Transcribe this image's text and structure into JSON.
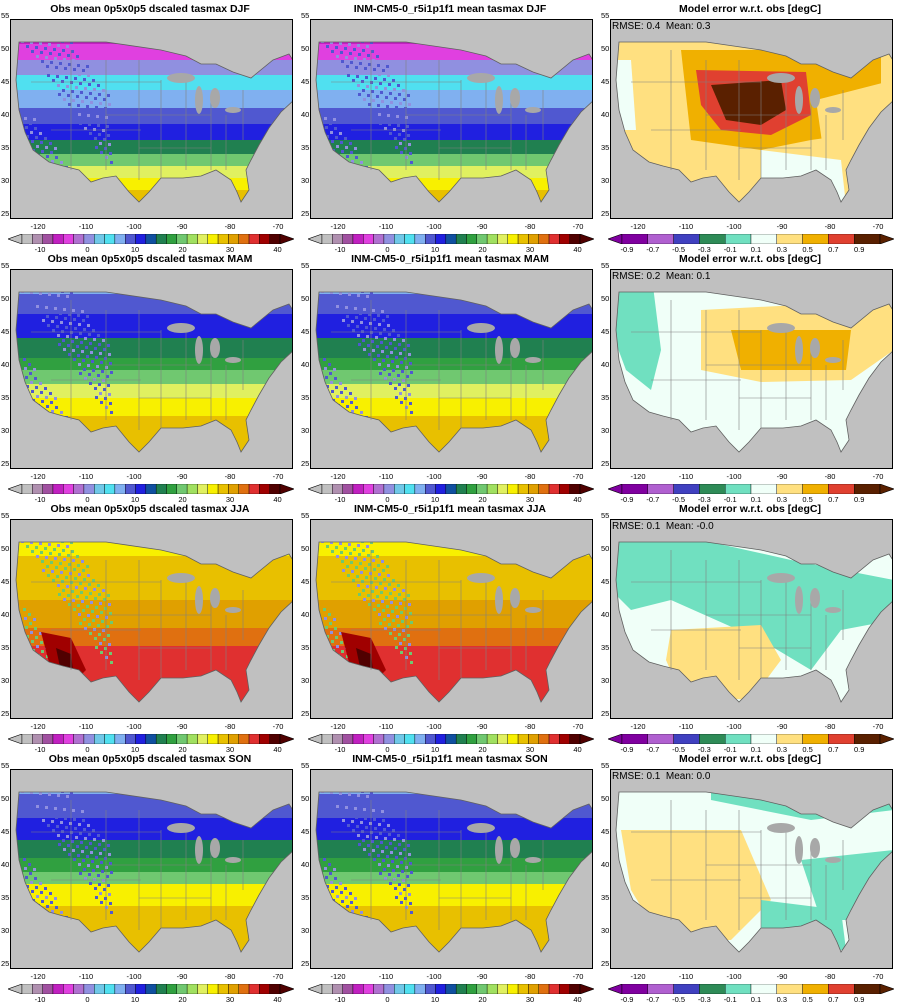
{
  "rows": [
    {
      "season": "DJF",
      "obs_title": "Obs mean 0p5x0p5 dscaled tasmax DJF",
      "model_title": "INM-CM5-0_r5i1p1f1 mean tasmax DJF",
      "err_title": "Model error w.r.t. obs [degC]",
      "err_stat": "RMSE: 0.4  Mean: 0.3"
    },
    {
      "season": "MAM",
      "obs_title": "Obs mean 0p5x0p5 dscaled tasmax MAM",
      "model_title": "INM-CM5-0_r5i1p1f1 mean tasmax MAM",
      "err_title": "Model error w.r.t. obs [degC]",
      "err_stat": "RMSE: 0.2  Mean: 0.1"
    },
    {
      "season": "JJA",
      "obs_title": "Obs mean 0p5x0p5 dscaled tasmax JJA",
      "model_title": "INM-CM5-0_r5i1p1f1 mean tasmax JJA",
      "err_title": "Model error w.r.t. obs [degC]",
      "err_stat": "RMSE: 0.1  Mean: -0.0"
    },
    {
      "season": "SON",
      "obs_title": "Obs mean 0p5x0p5 dscaled tasmax SON",
      "model_title": "INM-CM5-0_r5i1p1f1 mean tasmax SON",
      "err_title": "Model error w.r.t. obs [degC]",
      "err_stat": "RMSE: 0.1  Mean: 0.0"
    }
  ],
  "lat_ticks": [
    "25",
    "30",
    "35",
    "40",
    "45",
    "50",
    "55"
  ],
  "lon_ticks": [
    "-120",
    "-110",
    "-100",
    "-90",
    "-80",
    "-70"
  ],
  "temp_colorbar": {
    "tick_labels": [
      "-10",
      "0",
      "10",
      "20",
      "30",
      "40"
    ],
    "colors": [
      "#c0c0c0",
      "#b090b0",
      "#a050a0",
      "#c020c0",
      "#e040e0",
      "#b070d0",
      "#9090e0",
      "#70c8e8",
      "#50e0f0",
      "#80b0f0",
      "#5058d0",
      "#2020e0",
      "#1050a0",
      "#208050",
      "#30a040",
      "#70c870",
      "#a0e060",
      "#e0f060",
      "#f8f000",
      "#e8c000",
      "#e0a000",
      "#e07010",
      "#e03030",
      "#a00000",
      "#500000"
    ]
  },
  "err_colorbar": {
    "tick_labels": [
      "-0.9",
      "-0.7",
      "-0.5",
      "-0.3",
      "-0.1",
      "0.1",
      "0.3",
      "0.5",
      "0.7",
      "0.9"
    ],
    "colors": [
      "#8000a0",
      "#b060d0",
      "#4040c0",
      "#2e8b57",
      "#70e0c0",
      "#f0fff8",
      "#ffe080",
      "#f0b000",
      "#e04030",
      "#5a2000"
    ]
  },
  "colors": {
    "land_mask": "#c0c0c0",
    "border_lines": "#808080",
    "frame": "#000000"
  }
}
